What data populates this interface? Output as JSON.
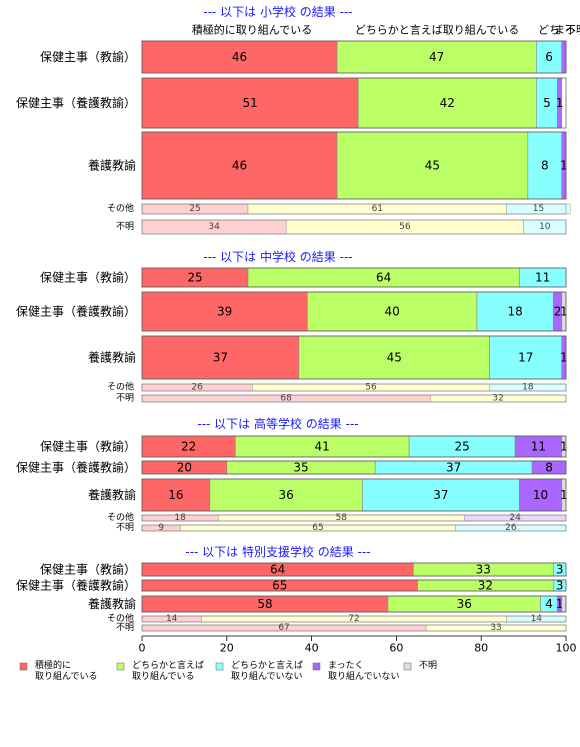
{
  "chart_data": {
    "type": "bar",
    "orientation": "horizontal",
    "stacked": true,
    "xlim": [
      0,
      100
    ],
    "x_ticks": [
      0,
      20,
      40,
      60,
      80,
      100
    ],
    "column_headers": [
      "積極的に取り組んでいる",
      "どちらかと言えば取り組んでいる",
      "どち",
      "まっ",
      "不明"
    ],
    "legend": {
      "placement": "bottom",
      "items": [
        {
          "label": "積極的に\n取り組んでいる",
          "color": "#ff6666"
        },
        {
          "label": "どちらかと言えば\n取り組んでいる",
          "color": "#bbff66"
        },
        {
          "label": "どちらかと言えば\n取り組んでいない",
          "color": "#88ffff"
        },
        {
          "label": "まったく\n取り組んでいない",
          "color": "#aa66ff"
        },
        {
          "label": "不明",
          "color": "#dddddd"
        }
      ]
    },
    "groups": [
      {
        "title": "--- 以下は 小学校 の結果 ---",
        "rows": [
          {
            "label": "保健主事（教諭）",
            "values": [
              46,
              47,
              6,
              1,
              0
            ],
            "labels": [
              "46",
              "47",
              "6",
              "",
              ""
            ],
            "size": "big"
          },
          {
            "label": "保健主事（養護教諭）",
            "values": [
              51,
              42,
              5,
              1,
              0
            ],
            "labels": [
              "51",
              "42",
              "5",
              "1",
              ""
            ],
            "size": "big"
          },
          {
            "label": "養護教諭",
            "values": [
              46,
              45,
              8,
              1,
              0
            ],
            "labels": [
              "46",
              "45",
              "8",
              "1",
              ""
            ],
            "size": "big"
          },
          {
            "label": "その他",
            "values": [
              25,
              61,
              15,
              0,
              0
            ],
            "labels": [
              "25",
              "61",
              "15",
              "",
              ""
            ],
            "size": "small"
          },
          {
            "label": "不明",
            "values": [
              34,
              56,
              10,
              0,
              0
            ],
            "labels": [
              "34",
              "56",
              "10",
              "",
              ""
            ],
            "size": "small"
          }
        ]
      },
      {
        "title": "--- 以下は 中学校 の結果 ---",
        "rows": [
          {
            "label": "保健主事（教諭）",
            "values": [
              25,
              64,
              11,
              0,
              0
            ],
            "labels": [
              "25",
              "64",
              "11",
              "",
              ""
            ],
            "size": "big"
          },
          {
            "label": "保健主事（養護教諭）",
            "values": [
              39,
              40,
              18,
              2,
              1
            ],
            "labels": [
              "39",
              "40",
              "18",
              "2",
              "1"
            ],
            "size": "big"
          },
          {
            "label": "養護教諭",
            "values": [
              37,
              45,
              17,
              1,
              0
            ],
            "labels": [
              "37",
              "45",
              "17",
              "1",
              ""
            ],
            "size": "big"
          },
          {
            "label": "その他",
            "values": [
              26,
              56,
              18,
              0,
              0
            ],
            "labels": [
              "26",
              "56",
              "18",
              "",
              ""
            ],
            "size": "small"
          },
          {
            "label": "不明",
            "values": [
              68,
              32,
              0,
              0,
              0
            ],
            "labels": [
              "68",
              "32",
              "",
              "",
              ""
            ],
            "size": "small"
          }
        ]
      },
      {
        "title": "--- 以下は 高等学校 の結果 ---",
        "rows": [
          {
            "label": "保健主事（教諭）",
            "values": [
              22,
              41,
              25,
              11,
              1
            ],
            "labels": [
              "22",
              "41",
              "25",
              "11",
              "1"
            ],
            "size": "big"
          },
          {
            "label": "保健主事（養護教諭）",
            "values": [
              20,
              35,
              37,
              8,
              0
            ],
            "labels": [
              "20",
              "35",
              "37",
              "8",
              ""
            ],
            "size": "big"
          },
          {
            "label": "養護教諭",
            "values": [
              16,
              36,
              37,
              10,
              1
            ],
            "labels": [
              "16",
              "36",
              "37",
              "10",
              "1"
            ],
            "size": "big"
          },
          {
            "label": "その他",
            "values": [
              18,
              58,
              0,
              24,
              0
            ],
            "labels": [
              "18",
              "58",
              "",
              "24",
              ""
            ],
            "size": "small"
          },
          {
            "label": "不明",
            "values": [
              9,
              65,
              26,
              0,
              0
            ],
            "labels": [
              "9",
              "65",
              "26",
              "",
              ""
            ],
            "size": "small"
          }
        ]
      },
      {
        "title": "--- 以下は 特別支援学校 の結果 ---",
        "rows": [
          {
            "label": "保健主事（教諭）",
            "values": [
              64,
              33,
              3,
              0,
              0
            ],
            "labels": [
              "64",
              "33",
              "3",
              "",
              ""
            ],
            "size": "big"
          },
          {
            "label": "保健主事（養護教諭）",
            "values": [
              65,
              32,
              3,
              0,
              0
            ],
            "labels": [
              "65",
              "32",
              "3",
              "",
              ""
            ],
            "size": "big"
          },
          {
            "label": "養護教諭",
            "values": [
              58,
              36,
              4,
              1,
              1
            ],
            "labels": [
              "58",
              "36",
              "4",
              "1",
              ""
            ],
            "size": "big"
          },
          {
            "label": "その他",
            "values": [
              14,
              72,
              14,
              0,
              0
            ],
            "labels": [
              "14",
              "72",
              "14",
              "",
              ""
            ],
            "size": "small"
          },
          {
            "label": "不明",
            "values": [
              67,
              33,
              0,
              0,
              0
            ],
            "labels": [
              "67",
              "33",
              "",
              "",
              ""
            ],
            "size": "small"
          }
        ]
      }
    ]
  }
}
